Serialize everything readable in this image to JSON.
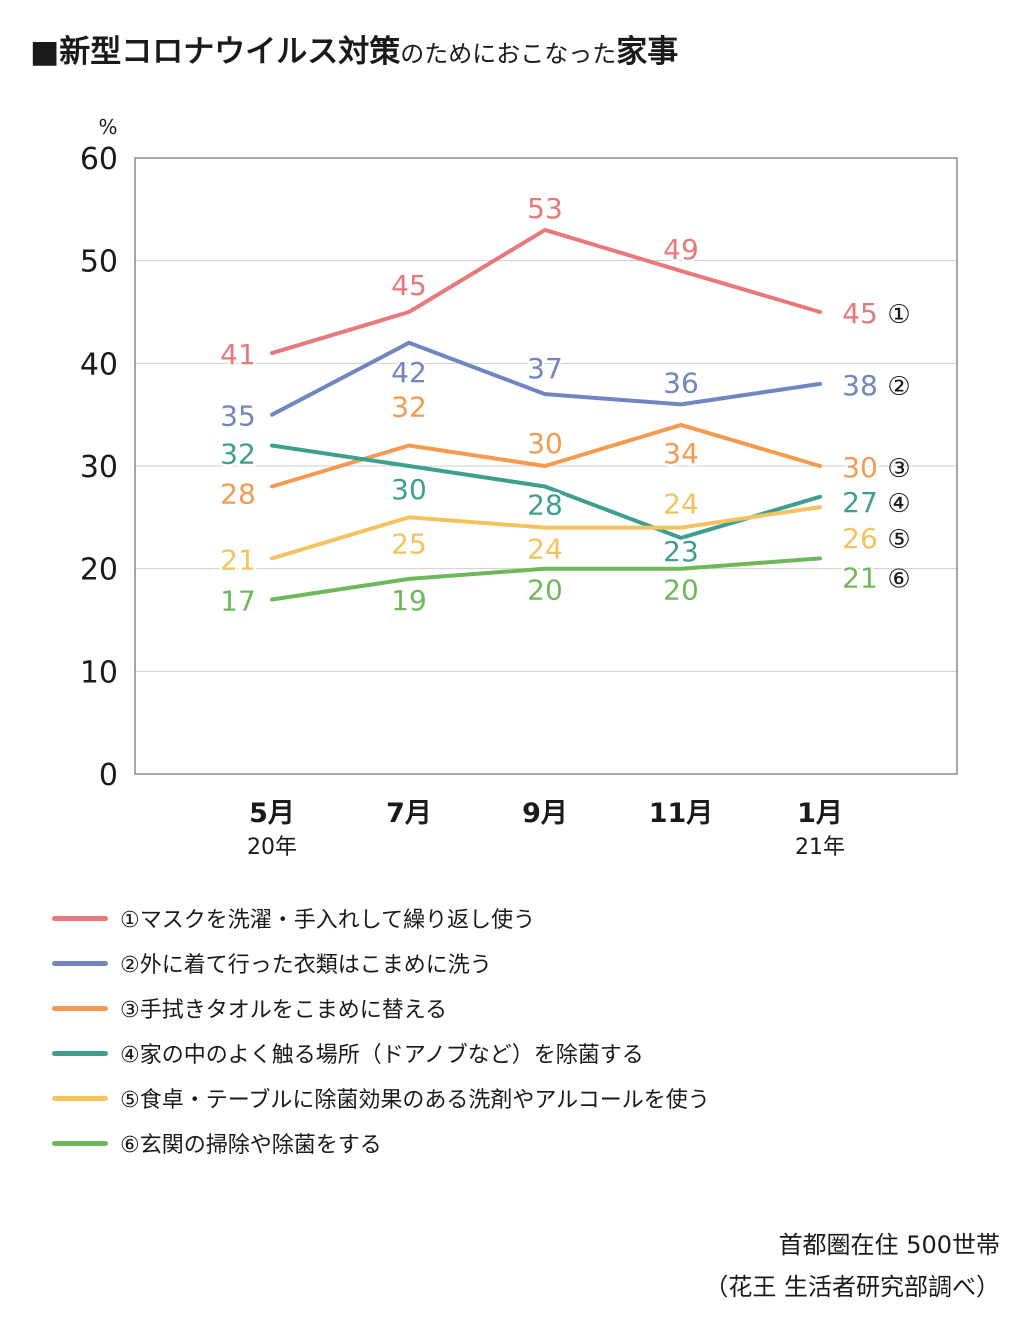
{
  "title": {
    "square": "■",
    "main": "新型コロナウイルス対策",
    "mid": "のためにおこなった",
    "end": "家事"
  },
  "source": {
    "line1": "首都圏在住 500世帯",
    "line2": "（花王 生活者研究部調べ）"
  },
  "chart_data": {
    "type": "line",
    "ylabel": "%",
    "ylim": [
      0,
      60
    ],
    "yticks": [
      0,
      10,
      20,
      30,
      40,
      50,
      60
    ],
    "grid": true,
    "categories": [
      "5月",
      "7月",
      "9月",
      "11月",
      "1月"
    ],
    "category_sublabels": [
      "20年",
      "",
      "",
      "",
      "21年"
    ],
    "series": [
      {
        "name": "①マスクを洗濯・手入れして繰り返し使う",
        "rank": "①",
        "color": "#e8787a",
        "values": [
          41,
          45,
          53,
          49,
          45
        ]
      },
      {
        "name": "②外に着て行った衣類はこまめに洗う",
        "rank": "②",
        "color": "#6f86c0",
        "values": [
          35,
          42,
          37,
          36,
          38
        ]
      },
      {
        "name": "③手拭きタオルをこまめに替える",
        "rank": "③",
        "color": "#f59a4f",
        "values": [
          28,
          32,
          30,
          34,
          30
        ]
      },
      {
        "name": "④家の中のよく触る場所（ドアノブなど）を除菌する",
        "rank": "④",
        "color": "#3e9f8e",
        "values": [
          32,
          30,
          28,
          23,
          27
        ]
      },
      {
        "name": "⑤食卓・テーブルに除菌効果のある洗剤やアルコールを使う",
        "rank": "⑤",
        "color": "#f4c25e",
        "values": [
          21,
          25,
          24,
          24,
          26
        ]
      },
      {
        "name": "⑥玄関の掃除や除菌をする",
        "rank": "⑥",
        "color": "#6fb85a",
        "values": [
          17,
          19,
          20,
          20,
          21
        ]
      }
    ]
  }
}
